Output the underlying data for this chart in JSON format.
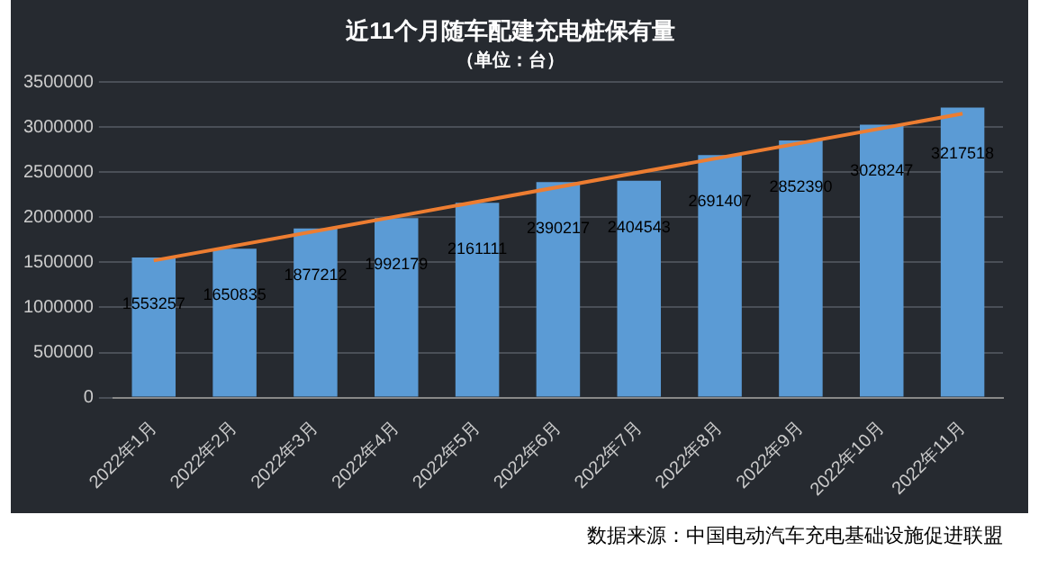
{
  "chart_data": {
    "type": "bar",
    "title": "近11个月随车配建充电桩保有量",
    "subtitle": "（单位：台）",
    "categories": [
      "2022年1月",
      "2022年2月",
      "2022年3月",
      "2022年4月",
      "2022年5月",
      "2022年6月",
      "2022年7月",
      "2022年8月",
      "2022年9月",
      "2022年10月",
      "2022年11月"
    ],
    "series": [
      {
        "color": "#5b9bd5",
        "values": [
          1553257,
          1650835,
          1877212,
          1992179,
          2161111,
          2390217,
          2404543,
          2691407,
          2852390,
          3028247,
          3217518
        ],
        "value_labels": [
          "1553257",
          "1650835",
          "1877212",
          "1992179",
          "2161111",
          "2390217",
          "2404543",
          "2691407",
          "2852390",
          "3028247",
          "3217518"
        ]
      },
      {
        "type": "line",
        "color": "#ed7d31",
        "x": [
          "2022年1月",
          "2022年11月"
        ],
        "values": [
          1520000,
          3150000
        ]
      }
    ],
    "ylim": [
      0,
      3500000
    ],
    "yticks": [
      0,
      500000,
      1000000,
      1500000,
      2000000,
      2500000,
      3000000,
      3500000
    ],
    "grid": "y",
    "legend": false,
    "marker": "none",
    "annotations": [
      "数据来源：中国电动汽车充电基础设施促进联盟"
    ]
  }
}
